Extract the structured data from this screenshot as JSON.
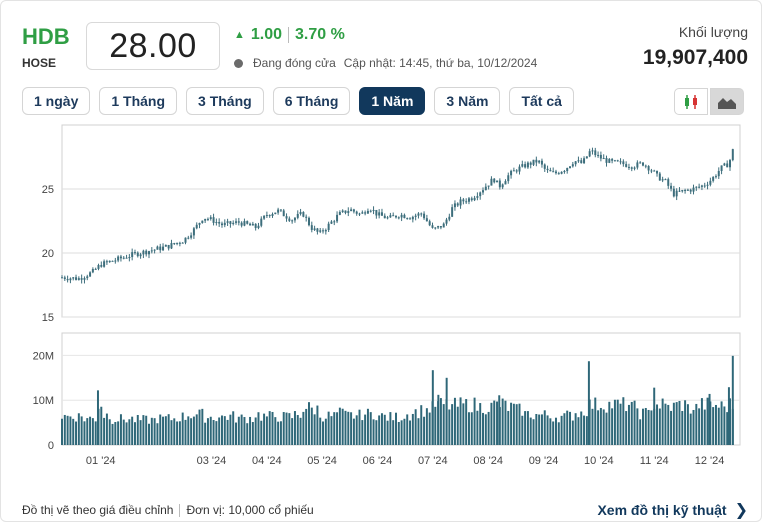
{
  "header": {
    "ticker": "HDB",
    "exchange": "HOSE",
    "price": "28.00",
    "change": "1.00",
    "change_pct": "3.70 %",
    "status": "Đang đóng cửa",
    "updated": "Cập nhật: 14:45, thứ ba, 10/12/2024",
    "volume_label": "Khối lượng",
    "volume_value": "19,907,400",
    "up_color": "#2f9e44"
  },
  "tabs": [
    {
      "label": "1 ngày",
      "active": false
    },
    {
      "label": "1 Tháng",
      "active": false
    },
    {
      "label": "3 Tháng",
      "active": false
    },
    {
      "label": "6 Tháng",
      "active": false
    },
    {
      "label": "1 Năm",
      "active": true
    },
    {
      "label": "3 Năm",
      "active": false
    },
    {
      "label": "Tất cả",
      "active": false
    }
  ],
  "view_buttons": [
    {
      "icon": "candlestick-icon",
      "active": false
    },
    {
      "icon": "area-chart-icon",
      "active": true
    }
  ],
  "chart_data": {
    "type": "line",
    "price_axis": {
      "ticks": [
        "25",
        "20",
        "15"
      ],
      "tick_values": [
        25,
        20,
        15
      ],
      "ylim": [
        15,
        30
      ]
    },
    "volume_axis": {
      "ticks": [
        "20M",
        "10M",
        "0"
      ],
      "tick_values": [
        20,
        10,
        0
      ],
      "ylim": [
        0,
        25
      ],
      "unit": "M"
    },
    "x_ticks": [
      "01 '24",
      "03 '24",
      "04 '24",
      "05 '24",
      "06 '24",
      "07 '24",
      "08 '24",
      "09 '24",
      "10 '24",
      "11 '24",
      "12 '24"
    ],
    "x_tick_months": [
      1,
      3,
      4,
      5,
      6,
      7,
      8,
      9,
      10,
      11,
      12
    ],
    "x_range_months": [
      0.3,
      12.55
    ],
    "price_series": [
      [
        0.3,
        18.1
      ],
      [
        0.6,
        18.0
      ],
      [
        0.85,
        18.5
      ],
      [
        1.0,
        19.1
      ],
      [
        1.3,
        19.5
      ],
      [
        1.6,
        19.9
      ],
      [
        1.9,
        20.2
      ],
      [
        2.2,
        20.5
      ],
      [
        2.5,
        21.0
      ],
      [
        2.7,
        21.9
      ],
      [
        2.85,
        22.8
      ],
      [
        3.0,
        22.6
      ],
      [
        3.2,
        22.2
      ],
      [
        3.5,
        22.4
      ],
      [
        3.8,
        22.0
      ],
      [
        4.0,
        23.0
      ],
      [
        4.2,
        23.3
      ],
      [
        4.45,
        22.6
      ],
      [
        4.65,
        23.1
      ],
      [
        4.8,
        22.0
      ],
      [
        4.95,
        21.5
      ],
      [
        5.1,
        22.1
      ],
      [
        5.3,
        23.0
      ],
      [
        5.5,
        23.4
      ],
      [
        5.7,
        23.0
      ],
      [
        5.85,
        23.6
      ],
      [
        6.0,
        23.0
      ],
      [
        6.2,
        22.7
      ],
      [
        6.4,
        23.0
      ],
      [
        6.6,
        22.8
      ],
      [
        6.8,
        23.1
      ],
      [
        7.0,
        21.8
      ],
      [
        7.2,
        22.2
      ],
      [
        7.35,
        23.5
      ],
      [
        7.5,
        24.0
      ],
      [
        7.7,
        24.3
      ],
      [
        7.9,
        25.0
      ],
      [
        8.1,
        25.8
      ],
      [
        8.2,
        25.2
      ],
      [
        8.35,
        26.0
      ],
      [
        8.5,
        26.5
      ],
      [
        8.7,
        26.9
      ],
      [
        8.9,
        27.2
      ],
      [
        9.05,
        26.4
      ],
      [
        9.2,
        26.2
      ],
      [
        9.4,
        26.6
      ],
      [
        9.55,
        27.2
      ],
      [
        9.7,
        27.0
      ],
      [
        9.85,
        28.0
      ],
      [
        10.0,
        27.5
      ],
      [
        10.2,
        27.1
      ],
      [
        10.4,
        27.0
      ],
      [
        10.6,
        26.8
      ],
      [
        10.8,
        27.0
      ],
      [
        10.95,
        26.5
      ],
      [
        11.05,
        26.0
      ],
      [
        11.2,
        25.6
      ],
      [
        11.35,
        24.6
      ],
      [
        11.5,
        24.8
      ],
      [
        11.7,
        25.0
      ],
      [
        11.9,
        25.3
      ],
      [
        12.05,
        25.8
      ],
      [
        12.2,
        26.6
      ],
      [
        12.35,
        27.0
      ],
      [
        12.42,
        28.0
      ]
    ],
    "volume_series": [
      [
        0.3,
        6.9
      ],
      [
        0.5,
        6.4
      ],
      [
        0.7,
        7.0
      ],
      [
        0.85,
        5.9
      ],
      [
        0.95,
        12.2
      ],
      [
        1.05,
        9.5
      ],
      [
        1.2,
        6.7
      ],
      [
        1.4,
        5.8
      ],
      [
        1.6,
        6.4
      ],
      [
        1.8,
        5.6
      ],
      [
        2.0,
        6.1
      ],
      [
        2.2,
        5.9
      ],
      [
        2.4,
        6.3
      ],
      [
        2.55,
        7.6
      ],
      [
        2.7,
        6.8
      ],
      [
        2.85,
        7.0
      ],
      [
        3.0,
        6.2
      ],
      [
        3.2,
        6.4
      ],
      [
        3.4,
        6.6
      ],
      [
        3.6,
        6.0
      ],
      [
        3.75,
        6.8
      ],
      [
        3.9,
        9.4
      ],
      [
        4.05,
        6.4
      ],
      [
        4.2,
        7.1
      ],
      [
        4.35,
        6.3
      ],
      [
        4.5,
        6.8
      ],
      [
        4.65,
        8.3
      ],
      [
        4.8,
        9.1
      ],
      [
        4.95,
        8.0
      ],
      [
        5.1,
        6.5
      ],
      [
        5.25,
        7.1
      ],
      [
        5.4,
        8.1
      ],
      [
        5.55,
        6.6
      ],
      [
        5.7,
        7.0
      ],
      [
        5.85,
        6.9
      ],
      [
        6.0,
        7.3
      ],
      [
        6.15,
        6.4
      ],
      [
        6.3,
        6.2
      ],
      [
        6.45,
        6.8
      ],
      [
        6.6,
        7.4
      ],
      [
        6.75,
        7.7
      ],
      [
        6.9,
        8.2
      ],
      [
        7.0,
        16.7
      ],
      [
        7.1,
        11.2
      ],
      [
        7.25,
        15.0
      ],
      [
        7.35,
        8.8
      ],
      [
        7.5,
        10.4
      ],
      [
        7.65,
        10.1
      ],
      [
        7.8,
        9.3
      ],
      [
        7.95,
        8.5
      ],
      [
        8.1,
        9.6
      ],
      [
        8.2,
        11.1
      ],
      [
        8.35,
        9.8
      ],
      [
        8.5,
        8.4
      ],
      [
        8.65,
        7.8
      ],
      [
        8.8,
        6.9
      ],
      [
        8.95,
        6.7
      ],
      [
        9.1,
        7.0
      ],
      [
        9.25,
        6.3
      ],
      [
        9.4,
        6.6
      ],
      [
        9.55,
        7.2
      ],
      [
        9.7,
        7.8
      ],
      [
        9.82,
        18.7
      ],
      [
        9.95,
        10.1
      ],
      [
        10.1,
        9.7
      ],
      [
        10.25,
        9.0
      ],
      [
        10.4,
        10.6
      ],
      [
        10.55,
        9.6
      ],
      [
        10.7,
        8.3
      ],
      [
        10.8,
        7.1
      ],
      [
        10.9,
        9.6
      ],
      [
        11.0,
        12.8
      ],
      [
        11.1,
        9.8
      ],
      [
        11.2,
        9.9
      ],
      [
        11.3,
        8.5
      ],
      [
        11.4,
        10.0
      ],
      [
        11.5,
        9.6
      ],
      [
        11.6,
        10.2
      ],
      [
        11.7,
        8.2
      ],
      [
        11.8,
        10.4
      ],
      [
        11.9,
        9.0
      ],
      [
        12.0,
        11.4
      ],
      [
        12.1,
        8.8
      ],
      [
        12.2,
        10.0
      ],
      [
        12.28,
        8.6
      ],
      [
        12.35,
        12.9
      ],
      [
        12.42,
        19.9
      ]
    ],
    "line_color": "#3d6e7c",
    "bar_color": "#2e6778",
    "grid": true
  },
  "footer": {
    "note": "Đồ thị vẽ theo giá điều chỉnh",
    "unit": "Đơn vị: 10,000 cổ phiếu",
    "link": "Xem đồ thị kỹ thuật"
  }
}
